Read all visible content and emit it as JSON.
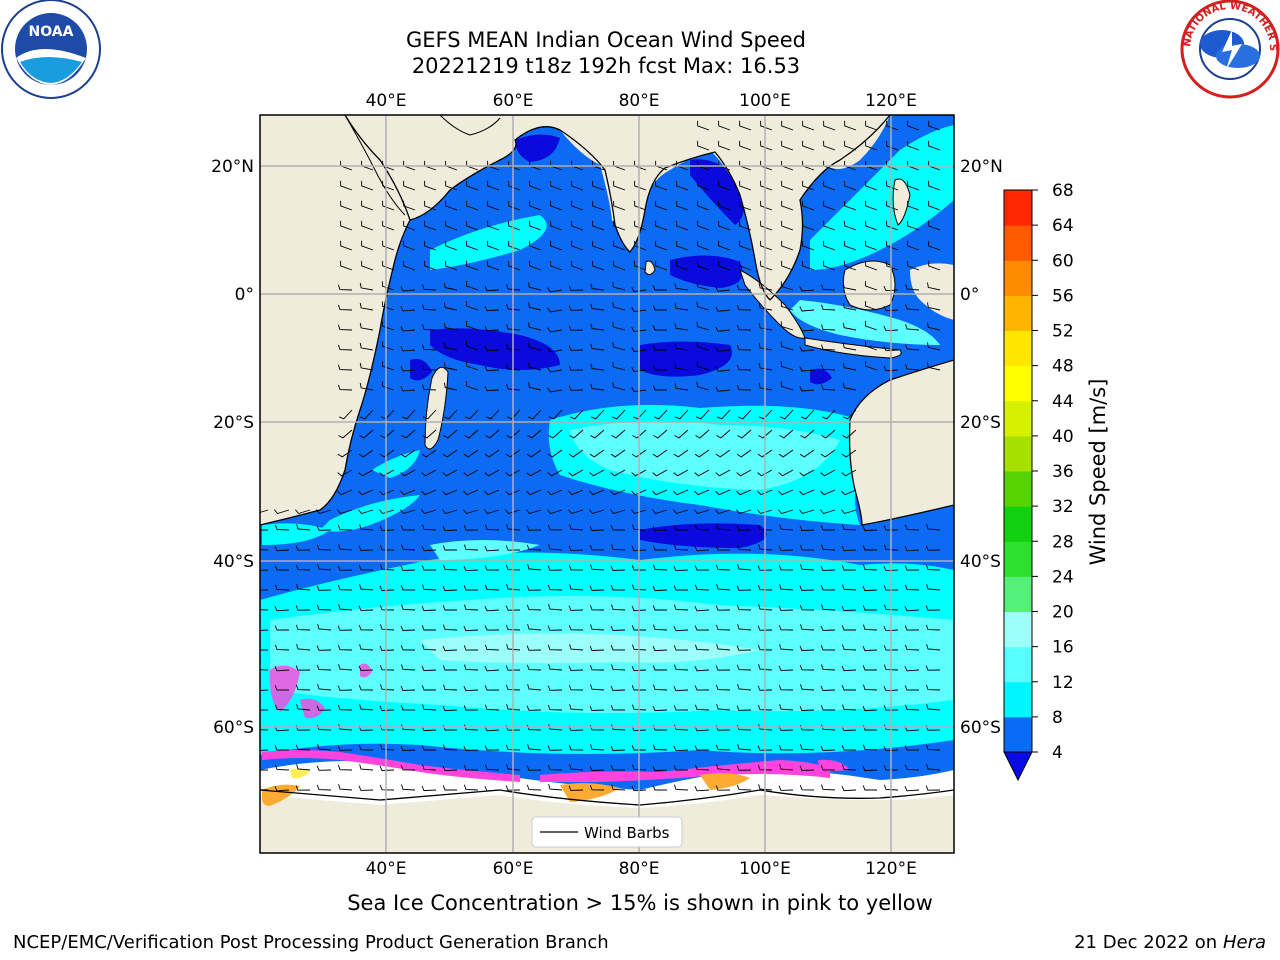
{
  "title": {
    "line1": "GEFS MEAN Indian Ocean Wind Speed",
    "line2": "20221219 t18z 192h fcst   Max: 16.53"
  },
  "map": {
    "lon_labels": [
      "40°E",
      "60°E",
      "80°E",
      "100°E",
      "120°E"
    ],
    "lat_labels": [
      "20°N",
      "0°",
      "20°S",
      "40°S",
      "60°S"
    ],
    "legend_label": "Wind Barbs",
    "colors": {
      "land": "#efecdc",
      "ice": "#ffffff",
      "band_4_8": "#0b6bf5",
      "band_0_4": "#0a0adc",
      "band_8_12": "#00ffff",
      "band_12_16": "#5effff",
      "band_16_20": "#9dfffa",
      "ice_pink": "#ff44dd",
      "ice_orange": "#ffaa33",
      "ice_yellow": "#ffee55"
    }
  },
  "colorbar": {
    "label": "Wind Speed [m/s]",
    "ticks": [
      "4",
      "8",
      "12",
      "16",
      "20",
      "24",
      "28",
      "32",
      "36",
      "40",
      "44",
      "48",
      "52",
      "56",
      "60",
      "64",
      "68"
    ],
    "colors": [
      "#0a6cf6",
      "#00f5ff",
      "#55ffff",
      "#9dfff8",
      "#55f07a",
      "#2de02d",
      "#10d010",
      "#55d400",
      "#a6e000",
      "#d5f000",
      "#ffff00",
      "#ffe600",
      "#ffb400",
      "#ff8c00",
      "#ff5a00",
      "#ff2800",
      "#ff0000"
    ],
    "under_color": "#0a0ae6"
  },
  "subtitle": "Sea Ice Concentration > 15% is shown in pink to yellow",
  "footer": {
    "left": "NCEP/EMC/Verification Post Processing Product Generation Branch",
    "date": "21 Dec 2022 on",
    "host": "Hera"
  },
  "logos": {
    "noaa_text": "NOAA",
    "nws_text": "NATIONAL WEATHER SERVICE"
  }
}
